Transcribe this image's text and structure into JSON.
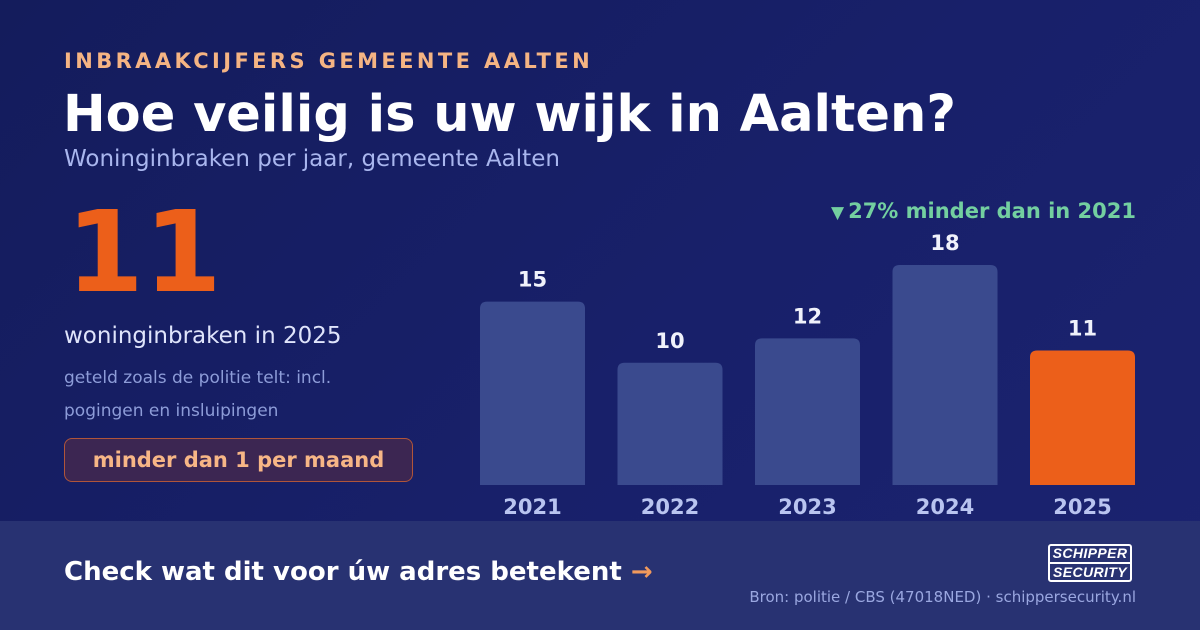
{
  "header": {
    "eyebrow": "INBRAAKCIJFERS GEMEENTE AALTEN",
    "title": "Hoe veilig is uw wijk in Aalten?",
    "subtitle": "Woninginbraken per jaar, gemeente Aalten"
  },
  "highlight": {
    "number": "11",
    "label": "woninginbraken in 2025",
    "note": "geteld zoals de politie telt: incl. pogingen en insluipingen",
    "pill": "minder dan 1 per maand"
  },
  "delta": {
    "icon": "triangle-down-icon",
    "text": "27% minder dan in 2021"
  },
  "chart_data": {
    "type": "bar",
    "categories": [
      "2021",
      "2022",
      "2023",
      "2024",
      "2025"
    ],
    "values": [
      15,
      10,
      12,
      18,
      11
    ],
    "title": "",
    "xlabel": "",
    "ylabel": "",
    "ylim": [
      0,
      18
    ],
    "grid": false,
    "highlight_category": "2025",
    "colors": {
      "bar": "#3a4a8e",
      "highlight": "#ec5f1a",
      "value_label": "#f0f2fb",
      "tick_label": "#b9c4f0"
    }
  },
  "footer": {
    "cta": "Check wat dit voor úw adres betekent",
    "cta_arrow": "→",
    "logo_line1": "SCHIPPER",
    "logo_line2": "SECURITY",
    "source": "Bron: politie / CBS (47018NED) · schippersecurity.nl"
  },
  "colors": {
    "background": "#161e63",
    "accent": "#ec5f1a",
    "eyebrow": "#f5b483",
    "positive": "#73cfa0",
    "footer_bg": "#283272"
  }
}
